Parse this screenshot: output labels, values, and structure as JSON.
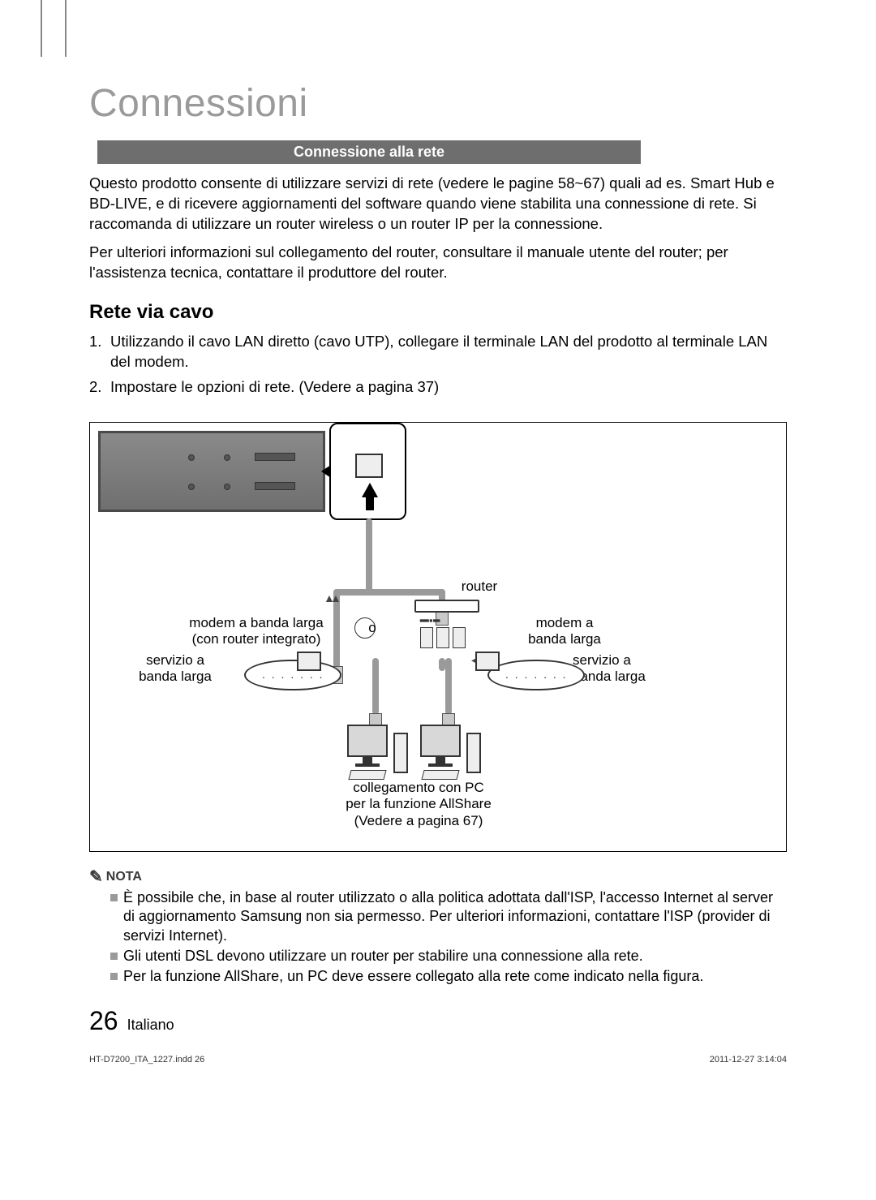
{
  "page": {
    "title": "Connessioni",
    "section_bar": "Connessione alla rete",
    "intro_p1": "Questo prodotto consente di utilizzare servizi di rete (vedere le pagine 58~67) quali ad es. Smart Hub e BD-LIVE, e di ricevere aggiornamenti del software quando viene stabilita una connessione di rete. Si raccomanda di utilizzare un router wireless o un router IP per la connessione.",
    "intro_p2": "Per ulteriori informazioni sul collegamento del router, consultare il manuale utente del router; per l'assistenza tecnica, contattare il produttore del router.",
    "subhead": "Rete via cavo",
    "step1_num": "1.",
    "step1": "Utilizzando il cavo LAN diretto (cavo UTP), collegare il terminale LAN del prodotto al terminale LAN del modem.",
    "step2_num": "2.",
    "step2": "Impostare le opzioni di rete. (Vedere a pagina 37)"
  },
  "diagram": {
    "router": "router",
    "modem_integrated_l1": "modem a banda larga",
    "modem_integrated_l2": "(con router integrato)",
    "modem_simple_l1": "modem a",
    "modem_simple_l2": "banda larga",
    "service_l1": "servizio a",
    "service_l2": "banda larga",
    "or": "o",
    "pc_note_l1": "collegamento con PC",
    "pc_note_l2": "per la funzione AllShare",
    "pc_note_l3": "(Vedere a pagina 67)",
    "colors": {
      "panel_border": "#4a4a4a",
      "panel_fill_top": "#8a8a8a",
      "panel_fill_bottom": "#6f6f6f",
      "wire": "#9a9a9a",
      "device_stroke": "#333333"
    }
  },
  "nota": {
    "head": "NOTA",
    "b1": "È possibile che, in base al router utilizzato o alla politica adottata dall'ISP, l'accesso Internet al server di aggiornamento Samsung non sia permesso. Per ulteriori informazioni, contattare l'ISP (provider di servizi Internet).",
    "b2": "Gli utenti DSL devono utilizzare un router per stabilire una connessione alla rete.",
    "b3": "Per la funzione AllShare, un PC deve essere collegato alla rete come indicato nella figura."
  },
  "footer": {
    "page_number": "26",
    "language": "Italiano",
    "indd": "HT-D7200_ITA_1227.indd   26",
    "timestamp": "2011-12-27   3:14:04"
  }
}
